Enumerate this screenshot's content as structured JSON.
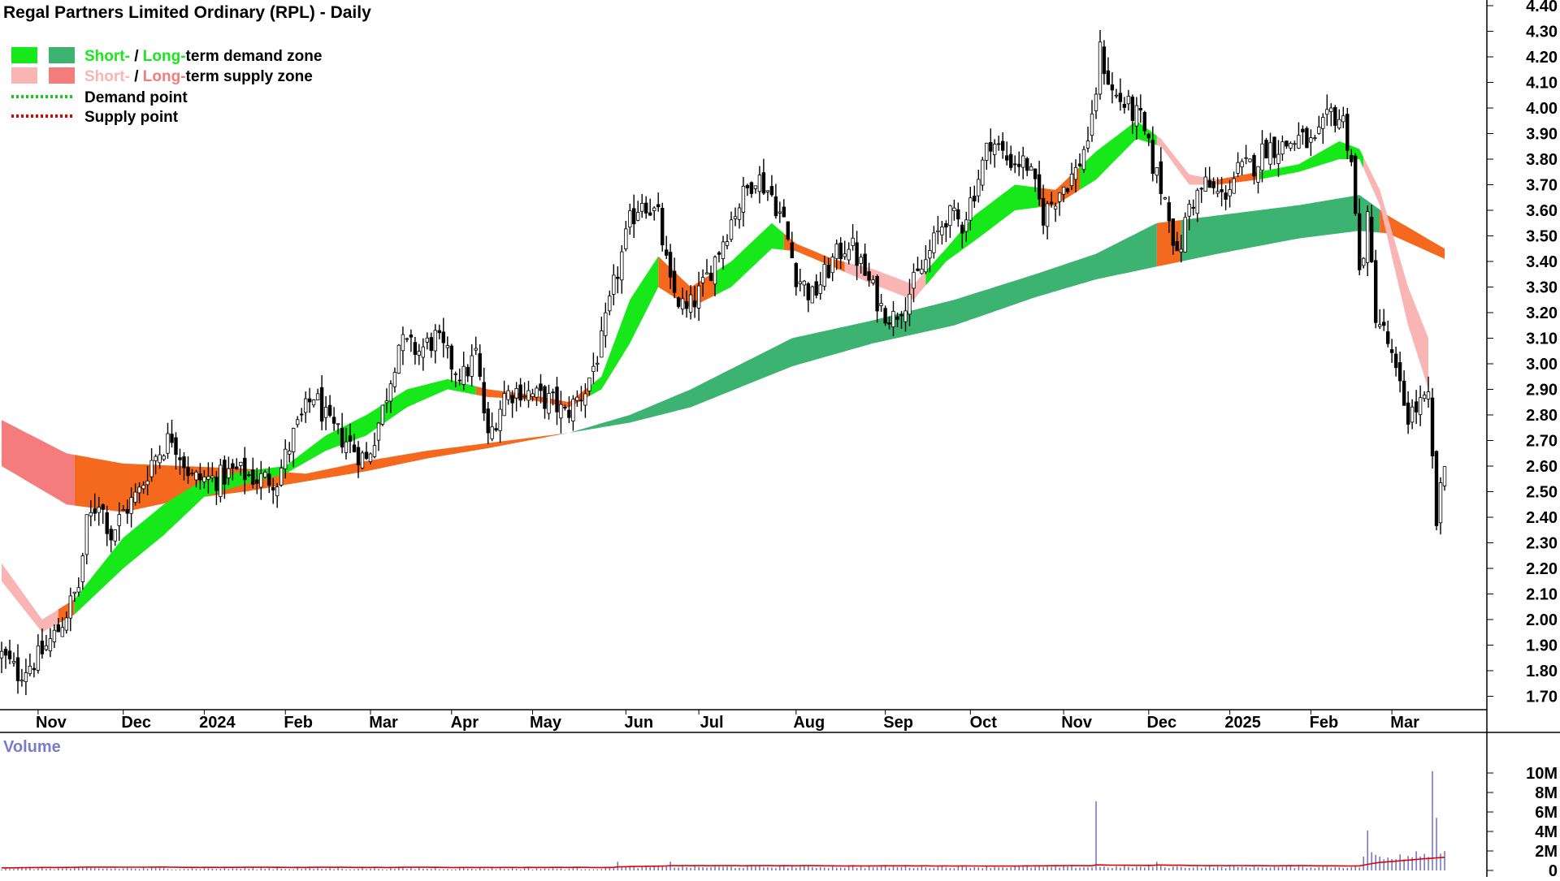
{
  "chart_data": {
    "type": "candlestick",
    "title": "Regal Partners Limited Ordinary (RPL) - Daily",
    "legend": {
      "demand_zone": {
        "short": "Short-",
        "sep": " / ",
        "long": "Long-",
        "rest": "term demand zone"
      },
      "supply_zone": {
        "short": "Short-",
        "sep": " / ",
        "long": "Long-",
        "rest": "term supply zone"
      },
      "demand_point": "Demand point",
      "supply_point": "Supply point"
    },
    "colors": {
      "short_demand": "#16e81a",
      "long_demand": "#3cb371",
      "short_supply": "#f9b4b4",
      "long_supply": "#f47c7c",
      "orange_zone": "#f5691f",
      "demand_point": "#16c81a",
      "supply_point": "#e00000",
      "volume_bar": "#6f6fc4",
      "volume_avg": "#e00000",
      "volume_label": "#7b7bc8"
    },
    "price_axis": {
      "ylim": [
        1.65,
        4.42
      ],
      "ticks": [
        "4.40",
        "4.30",
        "4.20",
        "4.10",
        "4.00",
        "3.90",
        "3.80",
        "3.70",
        "3.60",
        "3.50",
        "3.40",
        "3.30",
        "3.20",
        "3.10",
        "3.00",
        "2.90",
        "2.80",
        "2.70",
        "2.60",
        "2.50",
        "2.40",
        "2.30",
        "2.20",
        "2.10",
        "2.00",
        "1.90",
        "1.80",
        "1.70"
      ]
    },
    "time_axis": {
      "labels": [
        "Nov",
        "Dec",
        "2024",
        "Feb",
        "Mar",
        "Apr",
        "May",
        "Jun",
        "Jul",
        "Aug",
        "Sep",
        "Oct",
        "Nov",
        "Dec",
        "2025",
        "Feb",
        "Mar"
      ],
      "label_index": [
        9,
        30,
        50,
        70,
        91,
        111,
        131,
        154,
        172,
        196,
        218,
        239,
        262,
        283,
        303,
        323,
        343
      ]
    },
    "volume": {
      "label": "Volume",
      "ylim": [
        0,
        10.5
      ],
      "ticks": [
        "10M",
        "8M",
        "6M",
        "4M",
        "2M",
        "0"
      ],
      "spikes": [
        {
          "i": 270,
          "value": 7.1
        },
        {
          "i": 337,
          "value": 4.1
        },
        {
          "i": 353,
          "value": 10.2
        },
        {
          "i": 354,
          "value": 5.4
        }
      ]
    },
    "price_anchors": [
      [
        0,
        1.86
      ],
      [
        4,
        1.79
      ],
      [
        9,
        1.85
      ],
      [
        14,
        1.96
      ],
      [
        19,
        2.13
      ],
      [
        21,
        2.37
      ],
      [
        24,
        2.47
      ],
      [
        27,
        2.33
      ],
      [
        30,
        2.42
      ],
      [
        34,
        2.5
      ],
      [
        37,
        2.62
      ],
      [
        42,
        2.72
      ],
      [
        47,
        2.55
      ],
      [
        53,
        2.55
      ],
      [
        58,
        2.58
      ],
      [
        63,
        2.55
      ],
      [
        68,
        2.55
      ],
      [
        72,
        2.72
      ],
      [
        77,
        2.88
      ],
      [
        81,
        2.75
      ],
      [
        85,
        2.7
      ],
      [
        90,
        2.62
      ],
      [
        94,
        2.82
      ],
      [
        98,
        3.08
      ],
      [
        103,
        3.05
      ],
      [
        107,
        3.1
      ],
      [
        111,
        3.0
      ],
      [
        114,
        2.95
      ],
      [
        117,
        3.04
      ],
      [
        120,
        2.7
      ],
      [
        124,
        2.88
      ],
      [
        128,
        2.9
      ],
      [
        132,
        2.87
      ],
      [
        136,
        2.85
      ],
      [
        139,
        2.8
      ],
      [
        144,
        2.9
      ],
      [
        148,
        3.08
      ],
      [
        151,
        3.3
      ],
      [
        155,
        3.55
      ],
      [
        158,
        3.65
      ],
      [
        162,
        3.57
      ],
      [
        165,
        3.3
      ],
      [
        169,
        3.2
      ],
      [
        173,
        3.3
      ],
      [
        177,
        3.45
      ],
      [
        181,
        3.6
      ],
      [
        186,
        3.74
      ],
      [
        190,
        3.66
      ],
      [
        193,
        3.55
      ],
      [
        196,
        3.35
      ],
      [
        200,
        3.26
      ],
      [
        205,
        3.4
      ],
      [
        209,
        3.48
      ],
      [
        213,
        3.35
      ],
      [
        217,
        3.22
      ],
      [
        220,
        3.18
      ],
      [
        224,
        3.28
      ],
      [
        228,
        3.4
      ],
      [
        233,
        3.58
      ],
      [
        237,
        3.55
      ],
      [
        240,
        3.68
      ],
      [
        244,
        3.88
      ],
      [
        248,
        3.8
      ],
      [
        253,
        3.78
      ],
      [
        257,
        3.58
      ],
      [
        261,
        3.68
      ],
      [
        265,
        3.75
      ],
      [
        269,
        3.93
      ],
      [
        271,
        4.22
      ],
      [
        274,
        4.06
      ],
      [
        278,
        4.0
      ],
      [
        281,
        3.95
      ],
      [
        284,
        3.78
      ],
      [
        288,
        3.6
      ],
      [
        290,
        3.4
      ],
      [
        293,
        3.62
      ],
      [
        297,
        3.7
      ],
      [
        301,
        3.65
      ],
      [
        305,
        3.75
      ],
      [
        309,
        3.78
      ],
      [
        312,
        3.85
      ],
      [
        316,
        3.85
      ],
      [
        320,
        3.88
      ],
      [
        324,
        3.85
      ],
      [
        328,
        3.98
      ],
      [
        331,
        3.95
      ],
      [
        333,
        3.8
      ],
      [
        335,
        3.35
      ],
      [
        337,
        3.55
      ],
      [
        339,
        3.2
      ],
      [
        342,
        3.08
      ],
      [
        344,
        2.95
      ],
      [
        347,
        2.8
      ],
      [
        350,
        2.84
      ],
      [
        352,
        2.85
      ],
      [
        354,
        2.38
      ],
      [
        356,
        2.6
      ]
    ],
    "zone_anchors": {
      "long_top": [
        [
          0,
          2.78
        ],
        [
          16,
          2.65
        ],
        [
          30,
          2.61
        ],
        [
          45,
          2.6
        ],
        [
          60,
          2.59
        ],
        [
          75,
          2.57
        ],
        [
          90,
          2.62
        ],
        [
          105,
          2.66
        ],
        [
          120,
          2.69
        ],
        [
          140,
          2.73
        ],
        [
          155,
          2.8
        ],
        [
          170,
          2.9
        ],
        [
          195,
          3.1
        ],
        [
          215,
          3.17
        ],
        [
          235,
          3.25
        ],
        [
          255,
          3.35
        ],
        [
          270,
          3.43
        ],
        [
          285,
          3.55
        ],
        [
          300,
          3.58
        ],
        [
          320,
          3.62
        ],
        [
          335,
          3.66
        ],
        [
          342,
          3.58
        ],
        [
          356,
          3.45
        ]
      ],
      "long_bot": [
        [
          0,
          2.6
        ],
        [
          16,
          2.45
        ],
        [
          30,
          2.42
        ],
        [
          45,
          2.47
        ],
        [
          60,
          2.5
        ],
        [
          75,
          2.54
        ],
        [
          90,
          2.58
        ],
        [
          105,
          2.63
        ],
        [
          120,
          2.67
        ],
        [
          140,
          2.73
        ],
        [
          155,
          2.77
        ],
        [
          170,
          2.83
        ],
        [
          195,
          2.99
        ],
        [
          215,
          3.08
        ],
        [
          235,
          3.15
        ],
        [
          255,
          3.26
        ],
        [
          270,
          3.33
        ],
        [
          285,
          3.38
        ],
        [
          300,
          3.43
        ],
        [
          320,
          3.49
        ],
        [
          335,
          3.52
        ],
        [
          342,
          3.51
        ],
        [
          356,
          3.41
        ]
      ],
      "short_top": [
        [
          0,
          2.22
        ],
        [
          10,
          2.0
        ],
        [
          18,
          2.08
        ],
        [
          30,
          2.32
        ],
        [
          40,
          2.45
        ],
        [
          50,
          2.55
        ],
        [
          60,
          2.58
        ],
        [
          70,
          2.6
        ],
        [
          80,
          2.72
        ],
        [
          90,
          2.8
        ],
        [
          100,
          2.9
        ],
        [
          110,
          2.94
        ],
        [
          120,
          2.9
        ],
        [
          130,
          2.88
        ],
        [
          140,
          2.85
        ],
        [
          148,
          2.95
        ],
        [
          155,
          3.25
        ],
        [
          162,
          3.42
        ],
        [
          170,
          3.3
        ],
        [
          180,
          3.4
        ],
        [
          190,
          3.55
        ],
        [
          196,
          3.47
        ],
        [
          205,
          3.41
        ],
        [
          215,
          3.37
        ],
        [
          225,
          3.31
        ],
        [
          233,
          3.45
        ],
        [
          240,
          3.58
        ],
        [
          250,
          3.7
        ],
        [
          260,
          3.68
        ],
        [
          270,
          3.83
        ],
        [
          280,
          3.95
        ],
        [
          286,
          3.88
        ],
        [
          293,
          3.74
        ],
        [
          300,
          3.72
        ],
        [
          310,
          3.75
        ],
        [
          320,
          3.78
        ],
        [
          330,
          3.87
        ],
        [
          335,
          3.84
        ],
        [
          340,
          3.68
        ],
        [
          347,
          3.3
        ],
        [
          352,
          3.1
        ]
      ],
      "short_bot": [
        [
          0,
          2.15
        ],
        [
          10,
          1.95
        ],
        [
          18,
          2.02
        ],
        [
          30,
          2.2
        ],
        [
          40,
          2.33
        ],
        [
          50,
          2.48
        ],
        [
          60,
          2.53
        ],
        [
          70,
          2.57
        ],
        [
          80,
          2.66
        ],
        [
          90,
          2.72
        ],
        [
          100,
          2.83
        ],
        [
          110,
          2.9
        ],
        [
          120,
          2.87
        ],
        [
          130,
          2.86
        ],
        [
          140,
          2.83
        ],
        [
          148,
          2.9
        ],
        [
          155,
          3.08
        ],
        [
          162,
          3.3
        ],
        [
          170,
          3.22
        ],
        [
          180,
          3.3
        ],
        [
          190,
          3.45
        ],
        [
          196,
          3.44
        ],
        [
          205,
          3.38
        ],
        [
          215,
          3.31
        ],
        [
          225,
          3.25
        ],
        [
          233,
          3.4
        ],
        [
          240,
          3.48
        ],
        [
          250,
          3.6
        ],
        [
          260,
          3.62
        ],
        [
          270,
          3.72
        ],
        [
          280,
          3.88
        ],
        [
          286,
          3.85
        ],
        [
          293,
          3.7
        ],
        [
          300,
          3.7
        ],
        [
          310,
          3.72
        ],
        [
          320,
          3.75
        ],
        [
          330,
          3.8
        ],
        [
          335,
          3.8
        ],
        [
          340,
          3.62
        ],
        [
          347,
          3.15
        ],
        [
          352,
          2.9
        ]
      ]
    }
  }
}
